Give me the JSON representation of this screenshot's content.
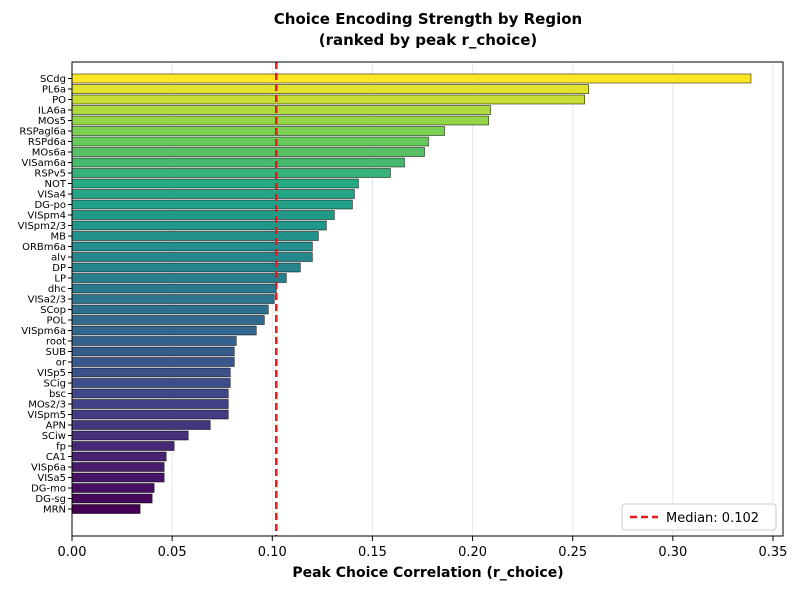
{
  "chart_data": {
    "type": "bar",
    "orientation": "horizontal",
    "title": "Choice Encoding Strength by Region",
    "subtitle": "(ranked by peak r_choice)",
    "xlabel": "Peak Choice Correlation (r_choice)",
    "ylabel": "",
    "xlim": [
      0.0,
      0.355
    ],
    "xticks": [
      "0.00",
      "0.05",
      "0.10",
      "0.15",
      "0.20",
      "0.25",
      "0.30",
      "0.35"
    ],
    "xtick_values": [
      0.0,
      0.05,
      0.1,
      0.15,
      0.2,
      0.25,
      0.3,
      0.35
    ],
    "grid": "x",
    "colormap": "viridis",
    "categories": [
      "SCdg",
      "PL6a",
      "PO",
      "ILA6a",
      "MOs5",
      "RSPagl6a",
      "RSPd6a",
      "MOs6a",
      "VISam6a",
      "RSPv5",
      "NOT",
      "VISa4",
      "DG-po",
      "VISpm4",
      "VISpm2/3",
      "MB",
      "ORBm6a",
      "alv",
      "DP",
      "LP",
      "dhc",
      "VISa2/3",
      "SCop",
      "POL",
      "VISpm6a",
      "root",
      "SUB",
      "or",
      "VISp5",
      "SCig",
      "bsc",
      "MOs2/3",
      "VISpm5",
      "APN",
      "SCiw",
      "fp",
      "CA1",
      "VISp6a",
      "VISa5",
      "DG-mo",
      "DG-sg",
      "MRN"
    ],
    "values": [
      0.339,
      0.258,
      0.256,
      0.209,
      0.208,
      0.186,
      0.178,
      0.176,
      0.166,
      0.159,
      0.143,
      0.141,
      0.14,
      0.131,
      0.127,
      0.123,
      0.12,
      0.12,
      0.114,
      0.107,
      0.102,
      0.101,
      0.098,
      0.096,
      0.092,
      0.082,
      0.081,
      0.081,
      0.079,
      0.079,
      0.078,
      0.078,
      0.078,
      0.069,
      0.058,
      0.051,
      0.047,
      0.046,
      0.046,
      0.041,
      0.04,
      0.034
    ],
    "reference_line": {
      "value": 0.102,
      "label": "Median: 0.102",
      "color": "#e41a1c",
      "style": "dashed"
    },
    "legend": {
      "placement": "bottom-right",
      "entries": [
        "Median: 0.102"
      ]
    }
  }
}
